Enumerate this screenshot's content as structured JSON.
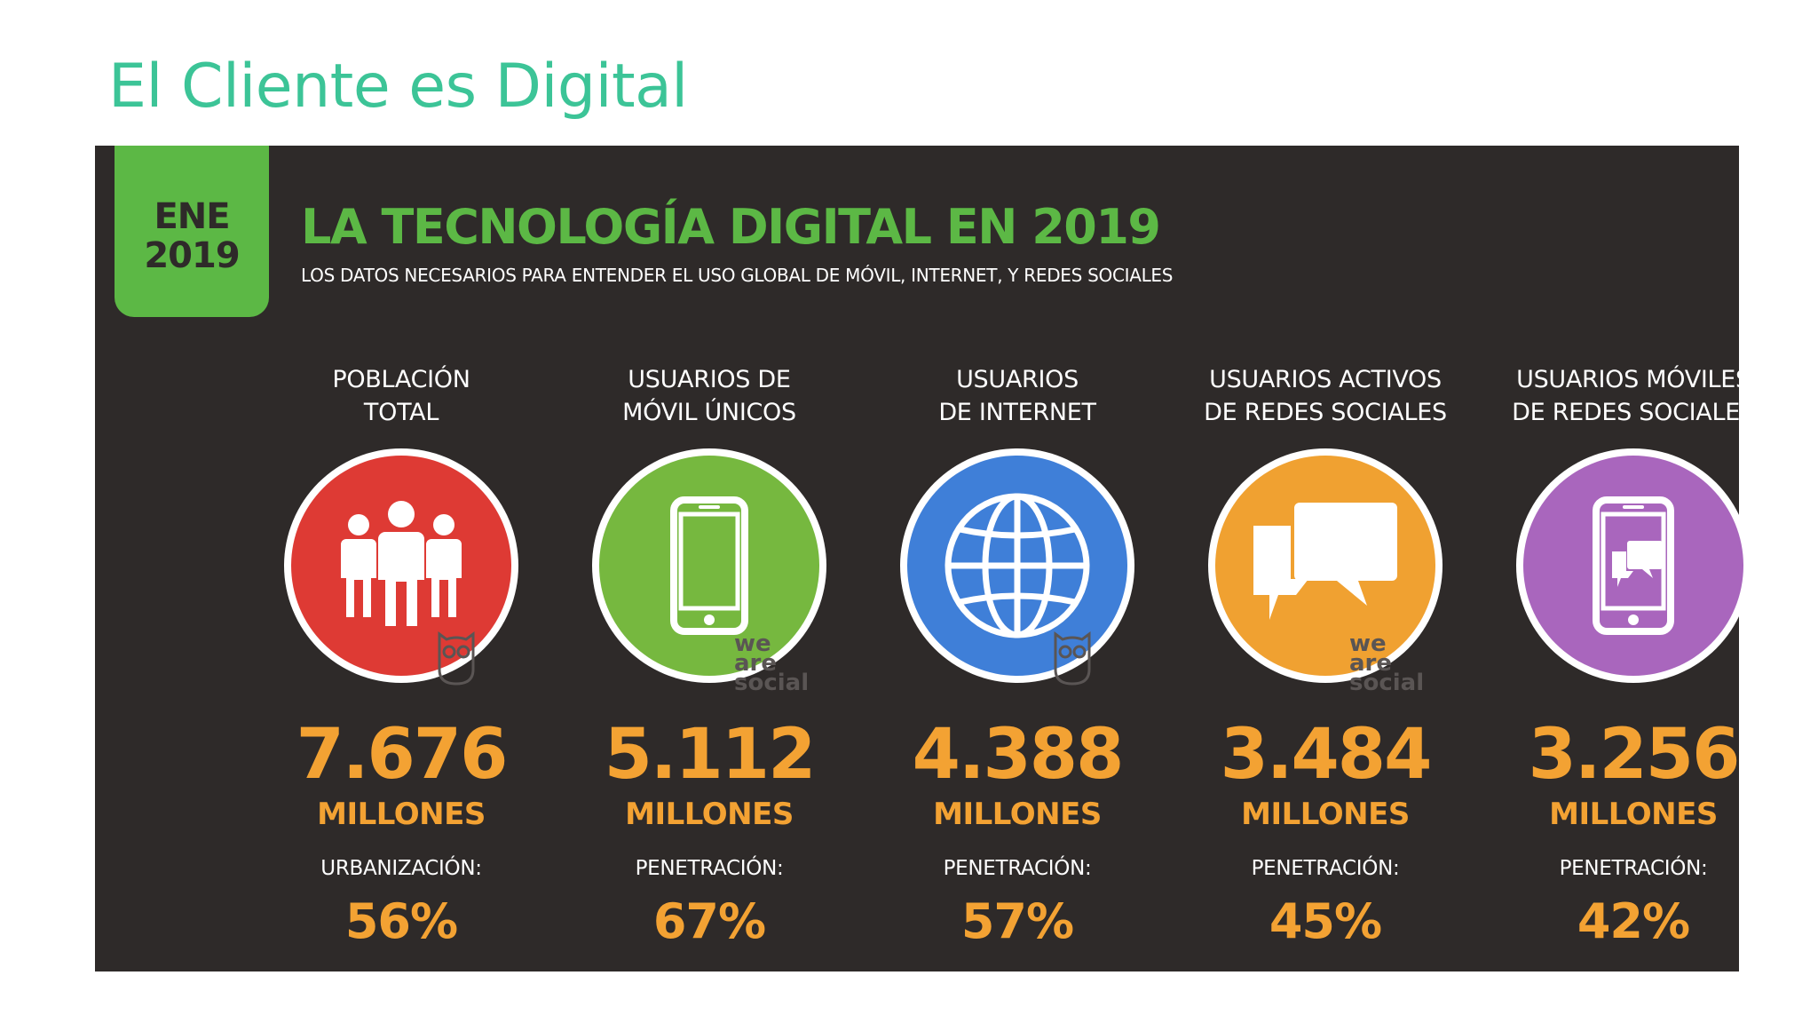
{
  "page_title": "El Cliente es Digital",
  "infographic": {
    "date_tab": {
      "month": "ENE",
      "year": "2019"
    },
    "headline": "LA TECNOLOGÍA DIGITAL EN 2019",
    "subheadline": "LOS DATOS NECESARIOS PARA ENTENDER EL USO GLOBAL DE MÓVIL, INTERNET, Y REDES SOCIALES",
    "watermark": {
      "line1": "we",
      "line2": "are",
      "line3": "social"
    },
    "stats": [
      {
        "label": "POBLACIÓN\nTOTAL",
        "icon": "people-icon",
        "color": "#de3a34",
        "value": "7.676",
        "unit": "MILLONES",
        "sublabel": "URBANIZACIÓN:",
        "percent": "56%"
      },
      {
        "label": "USUARIOS DE\nMÓVIL ÚNICOS",
        "icon": "mobile-phone-icon",
        "color": "#76b83f",
        "value": "5.112",
        "unit": "MILLONES",
        "sublabel": "PENETRACIÓN:",
        "percent": "67%"
      },
      {
        "label": "USUARIOS\nDE INTERNET",
        "icon": "globe-icon",
        "color": "#3f7fd8",
        "value": "4.388",
        "unit": "MILLONES",
        "sublabel": "PENETRACIÓN:",
        "percent": "57%"
      },
      {
        "label": "USUARIOS ACTIVOS\nDE REDES SOCIALES",
        "icon": "chat-bubbles-icon",
        "color": "#f0a131",
        "value": "3.484",
        "unit": "MILLONES",
        "sublabel": "PENETRACIÓN:",
        "percent": "45%"
      },
      {
        "label": "USUARIOS MÓVILES\nDE REDES SOCIALES",
        "icon": "mobile-chat-icon",
        "color": "#a966bd",
        "value": "3.256",
        "unit": "MILLONES",
        "sublabel": "PENETRACIÓN:",
        "percent": "42%"
      }
    ]
  }
}
